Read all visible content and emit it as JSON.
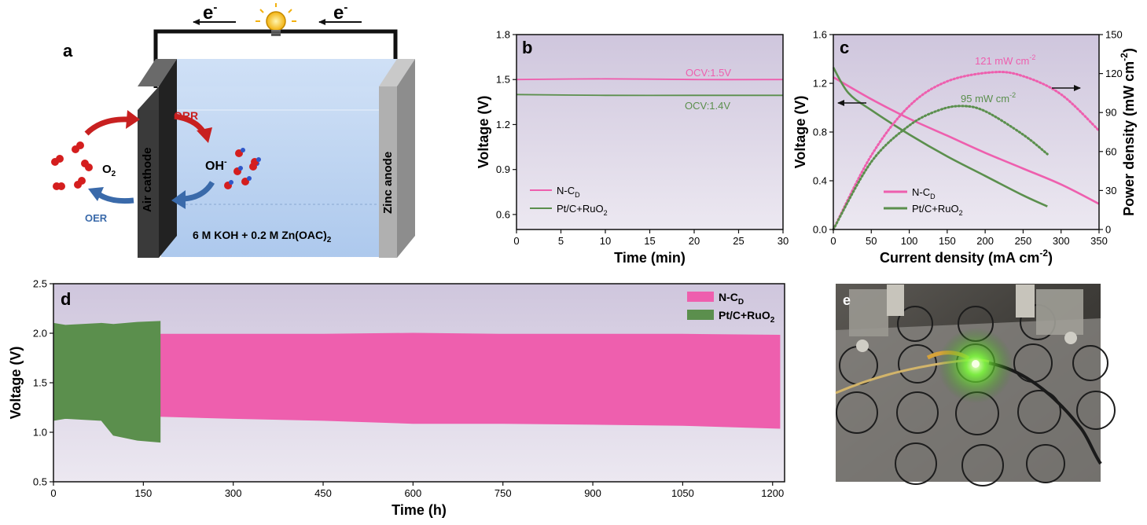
{
  "colors": {
    "ncd": "#ee5fae",
    "ptc": "#5b8f4d",
    "plot_bg_top": "#cfc6dd",
    "plot_bg_bottom": "#ece8f1",
    "orr_arrow": "#c82020",
    "oer_arrow": "#3a6aaa",
    "electrode_label": "#e8752a"
  },
  "schematic": {
    "panel_label": "a",
    "electron_left": "e",
    "electron_right": "e",
    "electron_sup": "-",
    "orr": "ORR",
    "oer": "OER",
    "oh": "OH",
    "oh_sup": "-",
    "o2": "O",
    "o2_sub": "2",
    "cathode": "Air cathode",
    "anode": "Zinc anode",
    "electrolyte_main": "6 M KOH + 0.2 M Zn(OAC)",
    "electrolyte_sub": "2"
  },
  "legend": {
    "ncd_main": "N-C",
    "ncd_sub": "D",
    "ptc_main": "Pt/C+RuO",
    "ptc_sub": "2"
  },
  "photo": {
    "panel_label": "e"
  },
  "chart_data": [
    {
      "panel": "b",
      "type": "line",
      "xlabel": "Time (min)",
      "ylabel": "Voltage (V)",
      "xlim": [
        0,
        30
      ],
      "ylim": [
        0.5,
        1.8
      ],
      "xticks": [
        "0",
        "5",
        "10",
        "15",
        "20",
        "25",
        "30"
      ],
      "yticks": [
        "0.6",
        "0.9",
        "1.2",
        "1.5",
        "1.8"
      ],
      "annotations": [
        "OCV:1.5V",
        "OCV:1.4V"
      ],
      "legend_position": "bottom-left",
      "series": [
        {
          "key": "ncd",
          "x": [
            0,
            10,
            20,
            30
          ],
          "y": [
            1.5,
            1.505,
            1.5,
            1.5
          ]
        },
        {
          "key": "ptc",
          "x": [
            0,
            10,
            20,
            30
          ],
          "y": [
            1.4,
            1.395,
            1.395,
            1.395
          ]
        }
      ]
    },
    {
      "panel": "c",
      "type": "line",
      "xlabel": "Current density (mA cm",
      "xlabel_sup": "-2",
      "xlabel_end": ")",
      "ylabel": "Voltage (V)",
      "y2label": "Power density (mW cm",
      "y2label_sup": "-2",
      "y2label_end": ")",
      "xlim": [
        0,
        350
      ],
      "ylim": [
        0,
        1.6
      ],
      "y2lim": [
        0,
        150
      ],
      "xticks": [
        "0",
        "50",
        "100",
        "150",
        "200",
        "250",
        "300",
        "350"
      ],
      "yticks": [
        "0.0",
        "0.4",
        "0.8",
        "1.2",
        "1.6"
      ],
      "y2ticks": [
        "0",
        "30",
        "60",
        "90",
        "120",
        "150"
      ],
      "annotations": [
        {
          "main": "121 mW cm",
          "sup": "-2"
        },
        {
          "main": "95 mW cm",
          "sup": "-2"
        }
      ],
      "legend_position": "bottom-center",
      "series": [
        {
          "key": "ncd",
          "role": "voltage",
          "x": [
            0,
            50,
            100,
            150,
            200,
            250,
            300,
            350
          ],
          "y": [
            1.25,
            1.07,
            0.91,
            0.77,
            0.63,
            0.5,
            0.37,
            0.21
          ]
        },
        {
          "key": "ptc",
          "role": "voltage",
          "x": [
            0,
            20,
            50,
            100,
            150,
            200,
            250,
            282
          ],
          "y": [
            1.33,
            1.12,
            0.98,
            0.78,
            0.6,
            0.44,
            0.28,
            0.19
          ]
        },
        {
          "key": "ncd",
          "role": "power",
          "x": [
            0,
            50,
            100,
            150,
            210,
            250,
            300,
            350
          ],
          "y": [
            0,
            57,
            95,
            114,
            121,
            118,
            104,
            76
          ]
        },
        {
          "key": "ptc",
          "role": "power",
          "x": [
            0,
            50,
            100,
            140,
            170,
            200,
            250,
            282
          ],
          "y": [
            0,
            52,
            80,
            92,
            95,
            91,
            73,
            58
          ]
        }
      ]
    },
    {
      "panel": "d",
      "type": "area",
      "xlabel": "Time (h)",
      "ylabel": "Voltage (V)",
      "xlim": [
        0,
        1220
      ],
      "ylim": [
        0.5,
        2.5
      ],
      "xticks": [
        "0",
        "150",
        "300",
        "450",
        "600",
        "750",
        "900",
        "1050",
        "1200"
      ],
      "yticks": [
        "0.5",
        "1.0",
        "1.5",
        "2.0",
        "2.5"
      ],
      "legend_position": "top-right",
      "series": [
        {
          "key": "ptc",
          "x": [
            0,
            20,
            80,
            100,
            140,
            178
          ],
          "upper": [
            2.1,
            2.08,
            2.1,
            2.09,
            2.11,
            2.12
          ],
          "lower": [
            1.12,
            1.14,
            1.12,
            0.97,
            0.92,
            0.9
          ]
        },
        {
          "key": "ncd",
          "x": [
            178,
            300,
            450,
            600,
            750,
            900,
            1050,
            1212
          ],
          "upper": [
            1.99,
            1.99,
            1.99,
            2.0,
            1.99,
            1.99,
            1.99,
            1.98
          ],
          "lower": [
            1.16,
            1.14,
            1.12,
            1.09,
            1.09,
            1.08,
            1.07,
            1.04
          ]
        }
      ]
    }
  ]
}
